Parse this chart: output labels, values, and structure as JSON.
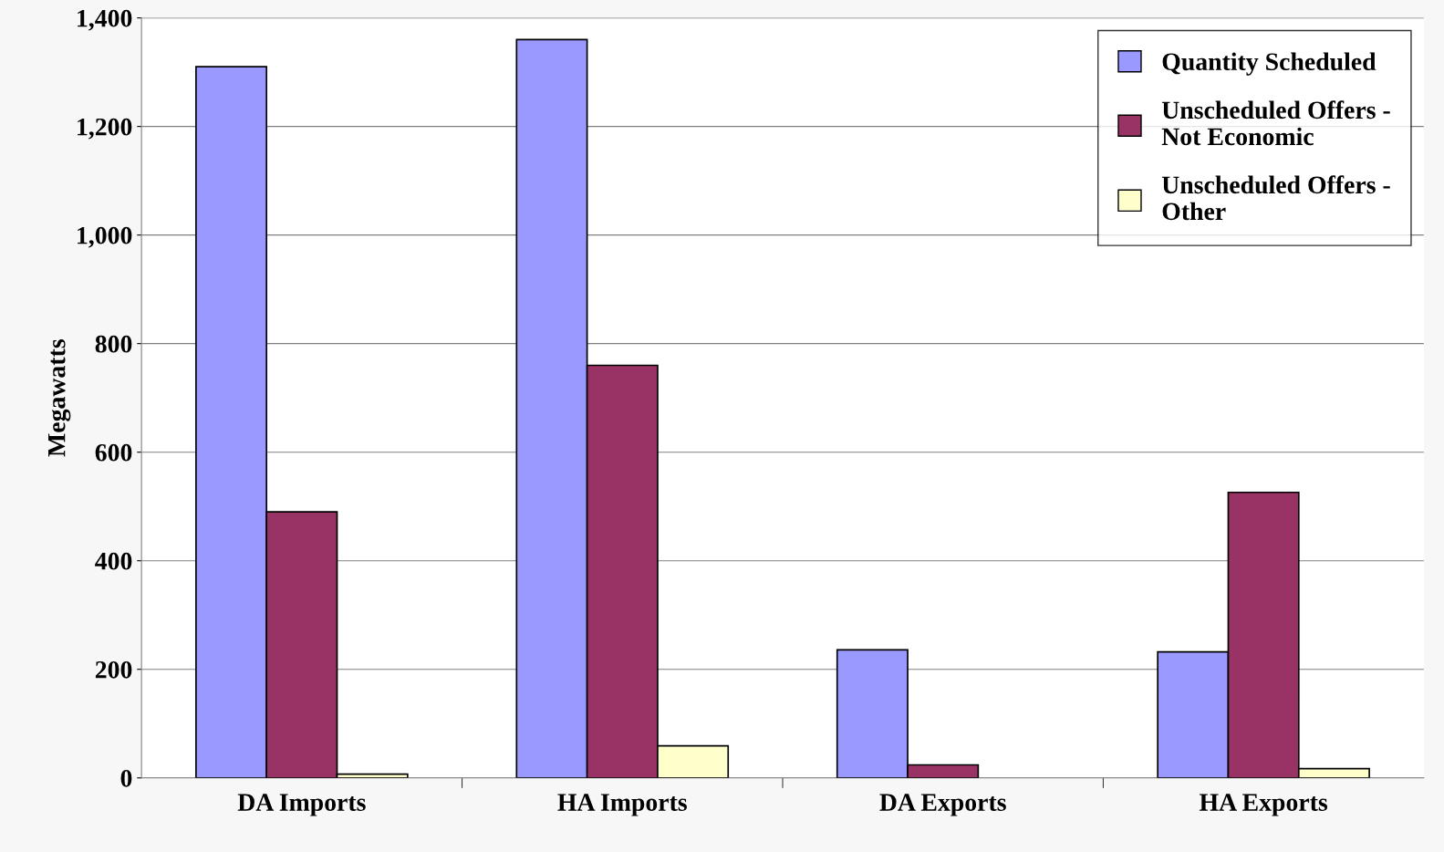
{
  "chart_data": {
    "type": "bar",
    "ylabel": "Megawatts",
    "categories": [
      "DA Imports",
      "HA Imports",
      "DA Exports",
      "HA Exports"
    ],
    "series": [
      {
        "name": "Quantity Scheduled",
        "color": "#9999ff",
        "values": [
          1310,
          1360,
          236,
          232
        ]
      },
      {
        "name": "Unscheduled Offers - Not Economic",
        "color": "#993366",
        "values": [
          490,
          760,
          24,
          526
        ]
      },
      {
        "name": "Unscheduled Offers - Other",
        "color": "#ffffcc",
        "values": [
          7,
          59,
          null,
          17
        ]
      }
    ],
    "ylim": [
      0,
      1400
    ],
    "yticks": [
      {
        "value": 0,
        "label": "0"
      },
      {
        "value": 200,
        "label": "200"
      },
      {
        "value": 400,
        "label": "400"
      },
      {
        "value": 600,
        "label": "600"
      },
      {
        "value": 800,
        "label": "800"
      },
      {
        "value": 1000,
        "label": "1,000"
      },
      {
        "value": 1200,
        "label": "1,200"
      },
      {
        "value": 1400,
        "label": "1,400"
      }
    ],
    "grid": "y",
    "legend": "top right"
  }
}
